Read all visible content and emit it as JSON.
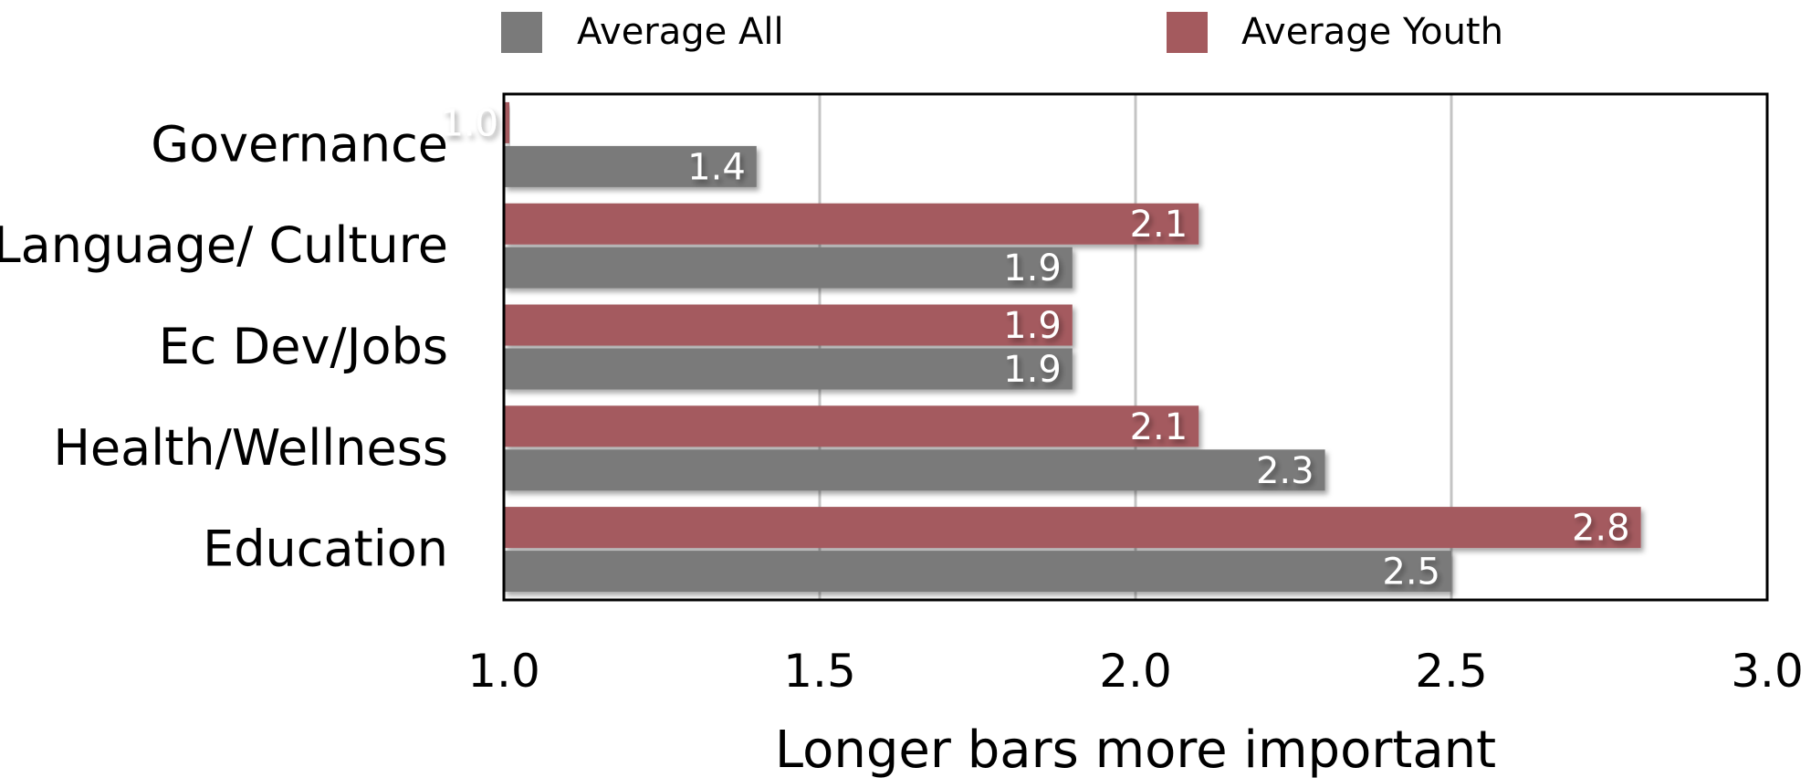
{
  "chart_data": {
    "type": "bar",
    "orientation": "horizontal",
    "categories": [
      "Governance",
      "Language/ Culture",
      "Ec Dev/Jobs",
      "Health/Wellness",
      "Education"
    ],
    "series": [
      {
        "name": "Average Youth",
        "color": "#a45a5e",
        "values": [
          1.0,
          2.1,
          1.9,
          2.1,
          2.8
        ],
        "labels": [
          "1.0",
          "2.1",
          "1.9",
          "2.1",
          "2.8"
        ]
      },
      {
        "name": "Average All",
        "color": "#7a7a7a",
        "values": [
          1.4,
          1.9,
          1.9,
          2.3,
          2.5
        ],
        "labels": [
          "1.4",
          "1.9",
          "1.9",
          "2.3",
          "2.5"
        ]
      }
    ],
    "legend_order": [
      "Average All",
      "Average Youth"
    ],
    "xlim": [
      1.0,
      3.0
    ],
    "xticks": [
      "1.0",
      "1.5",
      "2.0",
      "2.5",
      "3.0"
    ],
    "xlabel": "Longer bars more important",
    "grid": "vertical",
    "legend_position": "top"
  }
}
